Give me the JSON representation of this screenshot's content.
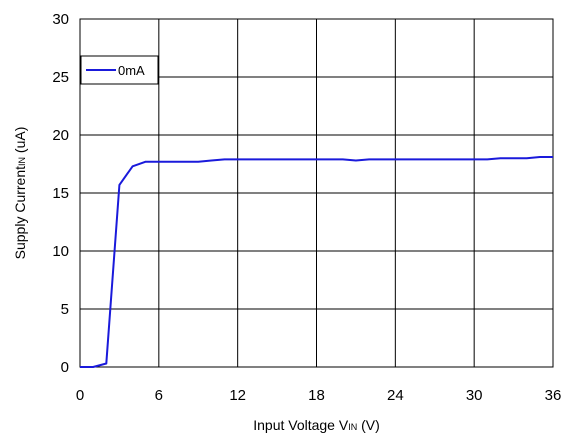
{
  "chart_data": {
    "type": "line",
    "title": "",
    "xlabel": {
      "main": "Input Voltage V",
      "sub": "IN",
      "tail": " (V)"
    },
    "ylabel": {
      "main": "Supply Current",
      "sub": "IN",
      "tail": " (uA)"
    },
    "xlim": [
      0,
      36
    ],
    "ylim": [
      0,
      30
    ],
    "xticks": [
      0,
      6,
      12,
      18,
      24,
      30,
      36
    ],
    "yticks": [
      0,
      5,
      10,
      15,
      20,
      25,
      30
    ],
    "grid": true,
    "legend_position": "top-left",
    "series": [
      {
        "name": "0mA",
        "color": "#1a1adb",
        "x": [
          0,
          1,
          2,
          3,
          4,
          5,
          6,
          7,
          8,
          9,
          10,
          11,
          12,
          13,
          14,
          15,
          16,
          17,
          18,
          19,
          20,
          21,
          22,
          23,
          24,
          25,
          26,
          27,
          28,
          29,
          30,
          31,
          32,
          33,
          34,
          35,
          36
        ],
        "y": [
          0,
          0,
          0.3,
          15.7,
          17.3,
          17.7,
          17.7,
          17.7,
          17.7,
          17.7,
          17.8,
          17.9,
          17.9,
          17.9,
          17.9,
          17.9,
          17.9,
          17.9,
          17.9,
          17.9,
          17.9,
          17.8,
          17.9,
          17.9,
          17.9,
          17.9,
          17.9,
          17.9,
          17.9,
          17.9,
          17.9,
          17.9,
          18.0,
          18.0,
          18.0,
          18.1,
          18.1
        ]
      }
    ]
  }
}
